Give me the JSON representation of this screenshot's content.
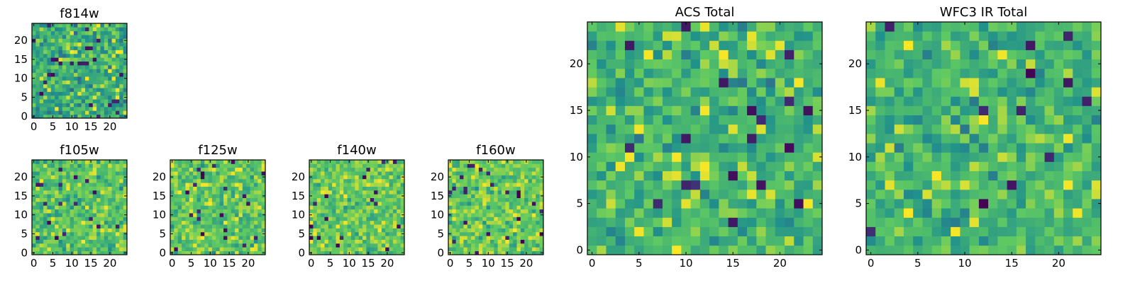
{
  "figure": {
    "colormap": "viridis",
    "colormap_stops": [
      "#440154",
      "#3b528b",
      "#21918c",
      "#5ec962",
      "#fde725"
    ]
  },
  "chart_data": [
    {
      "id": "f814w",
      "type": "heatmap",
      "title": "f814w",
      "grid_size": 25,
      "xlim": [
        -0.5,
        24.5
      ],
      "ylim": [
        -0.5,
        24.5
      ],
      "xticks": [
        0,
        5,
        10,
        15,
        20
      ],
      "yticks": [
        0,
        5,
        10,
        15,
        20
      ],
      "value_range": [
        0,
        1
      ],
      "seed": 814,
      "mean_level": 0.62,
      "spread": 0.34,
      "values": []
    },
    {
      "id": "f105w",
      "type": "heatmap",
      "title": "f105w",
      "grid_size": 25,
      "xlim": [
        -0.5,
        24.5
      ],
      "ylim": [
        -0.5,
        24.5
      ],
      "xticks": [
        0,
        5,
        10,
        15,
        20
      ],
      "yticks": [
        0,
        5,
        10,
        15,
        20
      ],
      "value_range": [
        0,
        1
      ],
      "seed": 105,
      "mean_level": 0.72,
      "spread": 0.3,
      "values": []
    },
    {
      "id": "f125w",
      "type": "heatmap",
      "title": "f125w",
      "grid_size": 25,
      "xlim": [
        -0.5,
        24.5
      ],
      "ylim": [
        -0.5,
        24.5
      ],
      "xticks": [
        0,
        5,
        10,
        15,
        20
      ],
      "yticks": [
        0,
        5,
        10,
        15,
        20
      ],
      "value_range": [
        0,
        1
      ],
      "seed": 125,
      "mean_level": 0.73,
      "spread": 0.3,
      "values": []
    },
    {
      "id": "f140w",
      "type": "heatmap",
      "title": "f140w",
      "grid_size": 25,
      "xlim": [
        -0.5,
        24.5
      ],
      "ylim": [
        -0.5,
        24.5
      ],
      "xticks": [
        0,
        5,
        10,
        15,
        20
      ],
      "yticks": [
        0,
        5,
        10,
        15,
        20
      ],
      "value_range": [
        0,
        1
      ],
      "seed": 140,
      "mean_level": 0.74,
      "spread": 0.28,
      "values": []
    },
    {
      "id": "f160w",
      "type": "heatmap",
      "title": "f160w",
      "grid_size": 25,
      "xlim": [
        -0.5,
        24.5
      ],
      "ylim": [
        -0.5,
        24.5
      ],
      "xticks": [
        0,
        5,
        10,
        15,
        20
      ],
      "yticks": [
        0,
        5,
        10,
        15,
        20
      ],
      "value_range": [
        0,
        1
      ],
      "seed": 160,
      "mean_level": 0.75,
      "spread": 0.29,
      "values": []
    },
    {
      "id": "acs-total",
      "type": "heatmap",
      "title": "ACS Total",
      "grid_size": 25,
      "xlim": [
        -0.5,
        24.5
      ],
      "ylim": [
        -0.5,
        24.5
      ],
      "xticks": [
        0,
        5,
        10,
        15,
        20
      ],
      "yticks": [
        0,
        5,
        10,
        15,
        20
      ],
      "value_range": [
        0,
        1
      ],
      "seed": 2001,
      "mean_level": 0.66,
      "spread": 0.31,
      "values": []
    },
    {
      "id": "wfc3-ir-total",
      "type": "heatmap",
      "title": "WFC3 IR Total",
      "grid_size": 25,
      "xlim": [
        -0.5,
        24.5
      ],
      "ylim": [
        -0.5,
        24.5
      ],
      "xticks": [
        0,
        5,
        10,
        15,
        20
      ],
      "yticks": [
        0,
        5,
        10,
        15,
        20
      ],
      "value_range": [
        0,
        1
      ],
      "seed": 3001,
      "mean_level": 0.66,
      "spread": 0.31,
      "values": []
    }
  ]
}
